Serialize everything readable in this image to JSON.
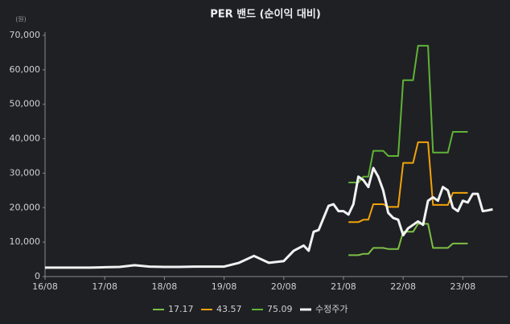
{
  "chart_data": {
    "type": "line",
    "title": "PER 밴드 (순이익 대비)",
    "y_unit": "(원)",
    "x": [
      "16/08",
      "16/11",
      "17/02",
      "17/05",
      "17/08",
      "17/11",
      "18/02",
      "18/05",
      "18/08",
      "18/11",
      "19/02",
      "19/05",
      "19/08",
      "19/11",
      "20/02",
      "20/05",
      "20/08",
      "20/10",
      "20/12",
      "21/01",
      "21/02",
      "21/03",
      "21/05",
      "21/06",
      "21/07",
      "21/08",
      "21/09",
      "21/10",
      "21/11",
      "21/12",
      "22/01",
      "22/02",
      "22/03",
      "22/04",
      "22/05",
      "22/06",
      "22/07",
      "22/08",
      "22/09",
      "22/10",
      "22/11",
      "22/12",
      "23/01",
      "23/02",
      "23/03",
      "23/04",
      "23/05",
      "23/06",
      "23/07",
      "23/08",
      "23/09",
      "23/10",
      "23/11",
      "23/12",
      "24/01",
      "24/02"
    ],
    "xlim": [
      "16/08",
      "24/05"
    ],
    "xticks": [
      "16/08",
      "17/08",
      "18/08",
      "19/08",
      "20/08",
      "21/08",
      "22/08",
      "23/08"
    ],
    "ylim": [
      0,
      70000
    ],
    "yticks": [
      0,
      {
        "value": 10000,
        "label": "10,000"
      },
      {
        "value": 20000,
        "label": "20,000"
      },
      {
        "value": 30000,
        "label": "30,000"
      },
      {
        "value": 40000,
        "label": "40,000"
      },
      {
        "value": 50000,
        "label": "50,000"
      },
      {
        "value": 60000,
        "label": "60,000"
      },
      {
        "value": 70000,
        "label": "70,000"
      }
    ],
    "grid": false,
    "legend": "bottom",
    "series": [
      {
        "name": "17.17",
        "color": "#7dbf45",
        "width": 2,
        "values": [
          null,
          null,
          null,
          null,
          null,
          null,
          null,
          null,
          null,
          null,
          null,
          null,
          null,
          null,
          null,
          null,
          null,
          null,
          null,
          null,
          null,
          null,
          null,
          null,
          null,
          null,
          6200,
          6200,
          6200,
          6600,
          6600,
          8300,
          8300,
          8300,
          8000,
          8000,
          8000,
          13000,
          13000,
          13000,
          15300,
          15300,
          15300,
          8300,
          8300,
          8300,
          8300,
          9600,
          9600,
          9600,
          9600,
          null,
          null,
          null,
          null,
          null
        ]
      },
      {
        "name": "43.57",
        "color": "#f0a30a",
        "width": 2,
        "values": [
          null,
          null,
          null,
          null,
          null,
          null,
          null,
          null,
          null,
          null,
          null,
          null,
          null,
          null,
          null,
          null,
          null,
          null,
          null,
          null,
          null,
          null,
          null,
          null,
          null,
          null,
          15800,
          15800,
          15800,
          16500,
          16500,
          21000,
          21000,
          21000,
          20200,
          20200,
          20200,
          33000,
          33000,
          33000,
          39000,
          39000,
          39000,
          20800,
          20800,
          20800,
          20800,
          24300,
          24300,
          24300,
          24300,
          null,
          null,
          null,
          null,
          null
        ]
      },
      {
        "name": "75.09",
        "color": "#5fb336",
        "width": 2,
        "values": [
          null,
          null,
          null,
          null,
          null,
          null,
          null,
          null,
          null,
          null,
          null,
          null,
          null,
          null,
          null,
          null,
          null,
          null,
          null,
          null,
          null,
          null,
          null,
          null,
          null,
          null,
          27300,
          27300,
          27300,
          29000,
          29000,
          36500,
          36500,
          36500,
          35000,
          35000,
          35000,
          57000,
          57000,
          57000,
          67000,
          67000,
          67000,
          36000,
          36000,
          36000,
          36000,
          42000,
          42000,
          42000,
          42000,
          null,
          null,
          null,
          null,
          null
        ]
      },
      {
        "name": "수정주가",
        "color": "#f2f2f2",
        "width": 3,
        "values": [
          2600,
          2600,
          2600,
          2600,
          2700,
          2800,
          3300,
          2900,
          2800,
          2800,
          2900,
          2900,
          2900,
          4000,
          6000,
          4000,
          4500,
          7500,
          9000,
          7500,
          13000,
          13500,
          20500,
          21000,
          19000,
          19000,
          18000,
          21000,
          29000,
          28000,
          26000,
          31500,
          29000,
          25000,
          18500,
          17000,
          16500,
          12000,
          14000,
          15000,
          16000,
          15000,
          22000,
          23000,
          22000,
          26000,
          25000,
          20000,
          19000,
          22000,
          21500,
          24000,
          24000,
          19000,
          19200,
          19500
        ]
      }
    ]
  }
}
